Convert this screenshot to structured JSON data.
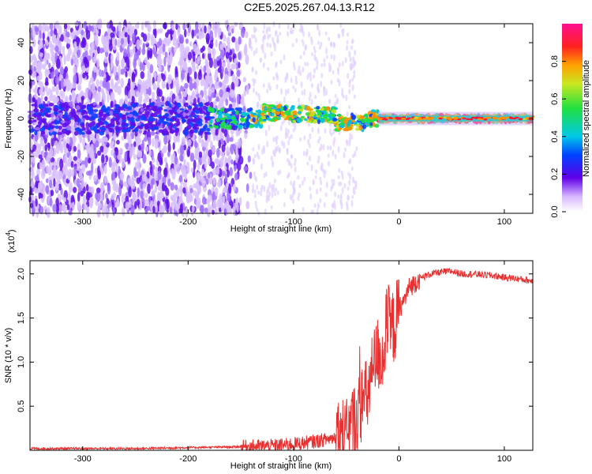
{
  "title": "C2E5.2025.267.04.13.R12",
  "chart_data": [
    {
      "type": "heatmap",
      "xlabel": "Height of straight line (km)",
      "ylabel": "Frequency (Hz)",
      "xlim": [
        -350,
        127
      ],
      "ylim": [
        -50,
        50
      ],
      "x_ticks": [
        -300,
        -200,
        -100,
        0,
        100
      ],
      "y_ticks": [
        -40,
        -20,
        0,
        20,
        40
      ],
      "colorbar": {
        "label": "Normalized spectral amplitude",
        "range": [
          0.0,
          1.0
        ],
        "ticks": [
          0.0,
          0.2,
          0.4,
          0.6,
          0.8
        ]
      },
      "colors": {
        "low": "#e8d8ff",
        "mid_low": "#5a00e0",
        "mid": "#00c8d8",
        "mid_high": "#40e040",
        "high": "#ff1040"
      }
    },
    {
      "type": "line",
      "xlabel": "Height of straight line (km)",
      "ylabel": "SNR (10 * v/v)",
      "y_scale_note": "(x10",
      "y_scale_exp": "4",
      "y_scale_close": ")",
      "xlim": [
        -350,
        127
      ],
      "ylim": [
        0,
        2.15
      ],
      "x_ticks": [
        -300,
        -200,
        -100,
        0,
        100
      ],
      "y_ticks": [
        0.5,
        1.0,
        1.5,
        2.0
      ],
      "y_tick_labels": [
        "0.5",
        "1.0",
        "1.5",
        "2.0"
      ],
      "line_color": "#e83030",
      "series": [
        {
          "x": [
            -350,
            -300,
            -250,
            -200,
            -150,
            -120,
            -100,
            -80,
            -70,
            -60,
            -55,
            -50,
            -45,
            -40,
            -35,
            -30,
            -25,
            -20,
            -15,
            -12,
            -10,
            -8,
            -5,
            -2,
            0,
            5,
            10,
            20,
            30,
            40,
            50,
            60,
            70,
            80,
            90,
            100,
            110,
            127
          ],
          "values": [
            0.02,
            0.02,
            0.02,
            0.03,
            0.04,
            0.05,
            0.07,
            0.1,
            0.12,
            0.15,
            0.2,
            0.12,
            0.3,
            0.35,
            0.55,
            0.6,
            0.9,
            1.1,
            1.05,
            1.4,
            1.45,
            1.35,
            1.4,
            1.5,
            1.6,
            1.7,
            1.85,
            1.95,
            2.0,
            2.02,
            2.03,
            2.0,
            2.0,
            1.99,
            1.98,
            1.96,
            1.95,
            1.92
          ]
        }
      ]
    }
  ]
}
